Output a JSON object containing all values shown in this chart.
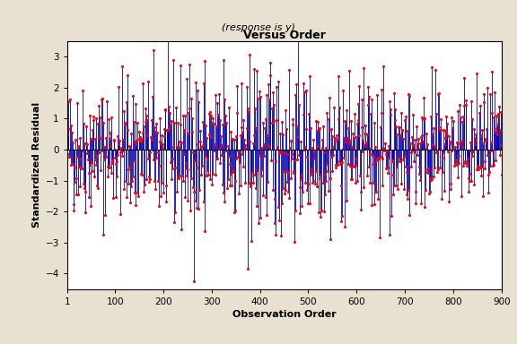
{
  "title": "Versus Order",
  "subtitle": "(response is y)",
  "xlabel": "Observation Order",
  "ylabel": "Standardized Residual",
  "xlim": [
    1,
    900
  ],
  "ylim": [
    -4.5,
    3.5
  ],
  "yticks": [
    -4,
    -3,
    -2,
    -1,
    0,
    1,
    2,
    3
  ],
  "xticks": [
    1,
    100,
    200,
    300,
    400,
    500,
    600,
    700,
    800,
    900
  ],
  "n_points": 900,
  "background_color": "#E8E0D0",
  "plot_bg_color": "#FFFFFF",
  "line_color": "#0000BB",
  "dot_color": "#FF0000",
  "hline_color": "#000000",
  "seed": 42,
  "outlier_index": 374,
  "outlier_value": -3.85
}
